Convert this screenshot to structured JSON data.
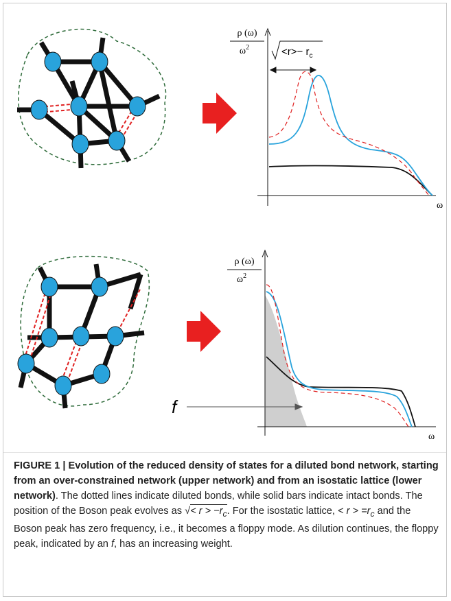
{
  "panels": [
    {
      "y_numerator": "ρ (ω)",
      "y_denominator": "ω",
      "y_exponent": "2",
      "x_label": "ω",
      "shift_label": "<r>− r",
      "shift_subscript": "c"
    },
    {
      "y_numerator": "ρ (ω)",
      "y_denominator": "ω",
      "y_exponent": "2",
      "x_label": "ω",
      "floppy_label": "f"
    }
  ],
  "caption": {
    "bold": "FIGURE 1 | Evolution of the reduced density of states for a diluted bond network, starting from an over-constrained network (upper network) and from an isostatic lattice (lower network)",
    "text_1": ". The dotted lines indicate diluted bonds, while solid bars indicate intact bonds. The position of the Boson peak evolves as ",
    "math_1": "< r > −r",
    "math_1_sub": "c",
    "text_2": ". For the isostatic lattice, ",
    "math_2": "< r > =r",
    "math_2_sub": "c",
    "text_3": " and the Boson peak has zero frequency, i.e., it becomes a floppy mode. As dilution continues, the floppy peak, indicated by an ",
    "italic": "f",
    "text_4": ", has an increasing weight."
  }
}
